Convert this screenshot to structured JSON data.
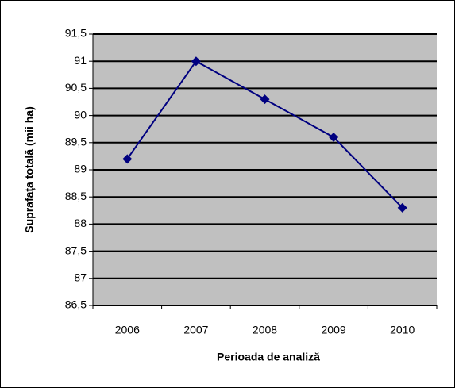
{
  "chart_data": {
    "type": "line",
    "y_label": "Suprafaţa totală (mii ha)",
    "x_label": "Perioada de analiză",
    "categories": [
      "2006",
      "2007",
      "2008",
      "2009",
      "2010"
    ],
    "values": [
      89.2,
      91.0,
      90.3,
      89.6,
      88.3
    ],
    "color": "#000080",
    "ylim": [
      86.5,
      91.5
    ],
    "yticks": [
      {
        "value": 86.5,
        "label": "86,5"
      },
      87,
      {
        "value": 87.5,
        "label": "87,5"
      },
      88,
      {
        "value": 88.5,
        "label": "88,5"
      },
      89,
      {
        "value": 89.5,
        "label": "89,5"
      },
      90,
      {
        "value": 90.5,
        "label": "90,5"
      },
      91,
      {
        "value": 91.5,
        "label": "91,5"
      }
    ],
    "grid": true
  }
}
